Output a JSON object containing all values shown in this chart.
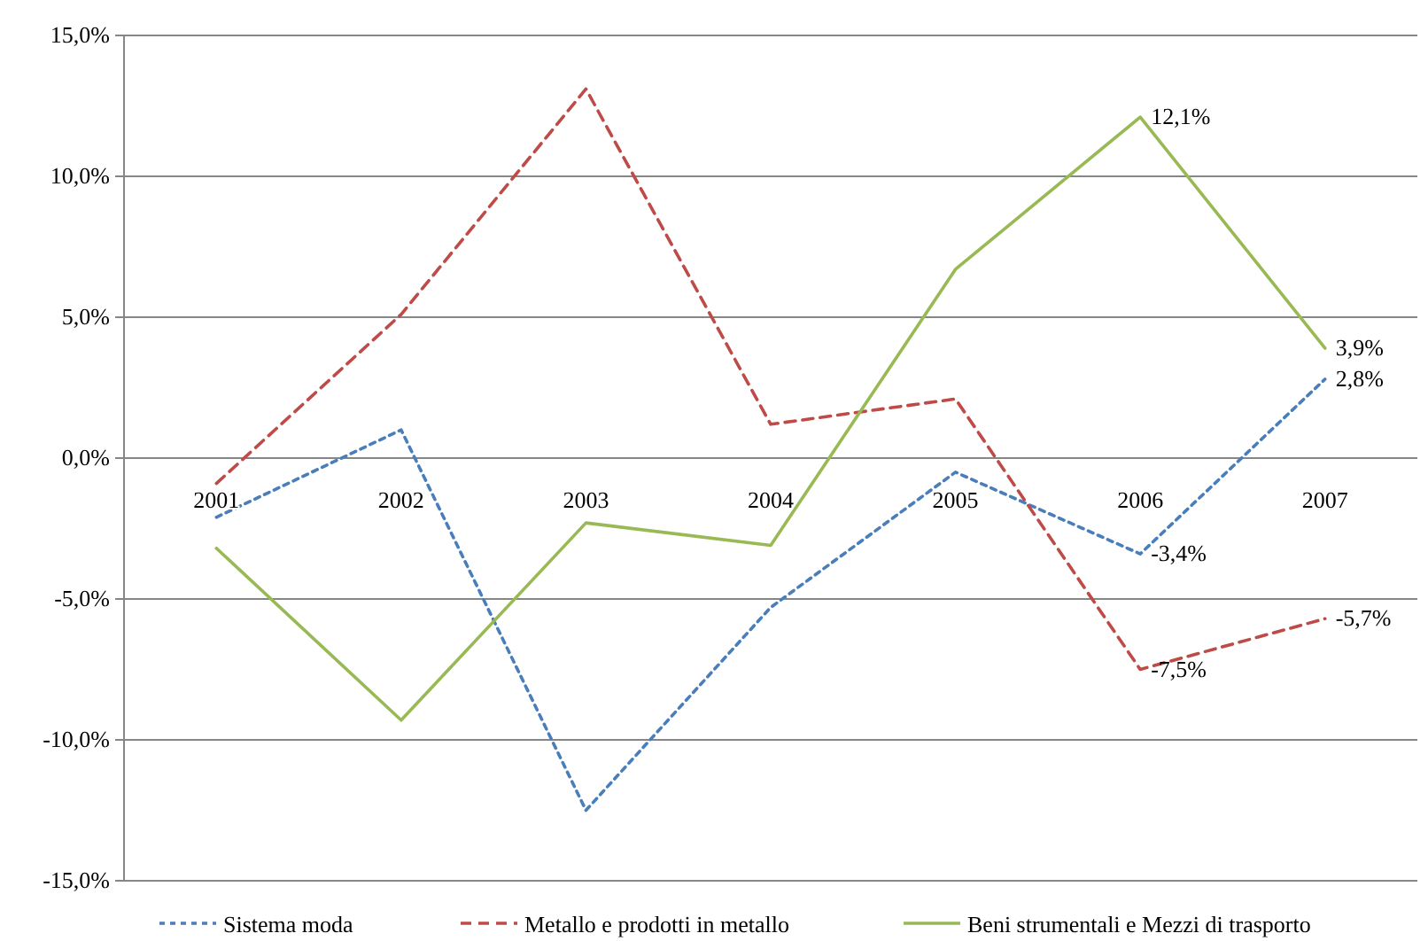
{
  "chart_data": {
    "type": "line",
    "categories": [
      "2001",
      "2002",
      "2003",
      "2004",
      "2005",
      "2006",
      "2007"
    ],
    "series": [
      {
        "name": "Sistema moda",
        "color": "#4a7ebb",
        "line_style": "dotted",
        "values": [
          -2.1,
          1.0,
          -12.5,
          -5.3,
          -0.5,
          -3.4,
          2.8
        ],
        "value_labels": [
          null,
          null,
          null,
          null,
          null,
          "-3,4%",
          "2,8%"
        ]
      },
      {
        "name": "Metallo e prodotti in metallo",
        "color": "#be4b48",
        "line_style": "dashed",
        "values": [
          -0.9,
          5.1,
          13.1,
          1.2,
          2.1,
          -7.5,
          -5.7
        ],
        "value_labels": [
          null,
          null,
          null,
          null,
          null,
          "-7,5%",
          "-5,7%"
        ]
      },
      {
        "name": "Beni strumentali e Mezzi di trasporto",
        "color": "#98b954",
        "line_style": "solid",
        "values": [
          -3.2,
          -9.3,
          -2.3,
          -3.1,
          6.7,
          12.1,
          3.9
        ],
        "value_labels": [
          null,
          null,
          null,
          null,
          null,
          "12,1%",
          "3,9%"
        ]
      }
    ],
    "ylim": [
      -15,
      15
    ],
    "yticks": [
      {
        "value": -15,
        "label": "-15,0%"
      },
      {
        "value": -10,
        "label": "-10,0%"
      },
      {
        "value": -5,
        "label": "-5,0%"
      },
      {
        "value": 0,
        "label": "0,0%"
      },
      {
        "value": 5,
        "label": "5,0%"
      },
      {
        "value": 10,
        "label": "10,0%"
      },
      {
        "value": 15,
        "label": "15,0%"
      }
    ],
    "grid": "y",
    "legend": "bottom",
    "marker": "none"
  }
}
